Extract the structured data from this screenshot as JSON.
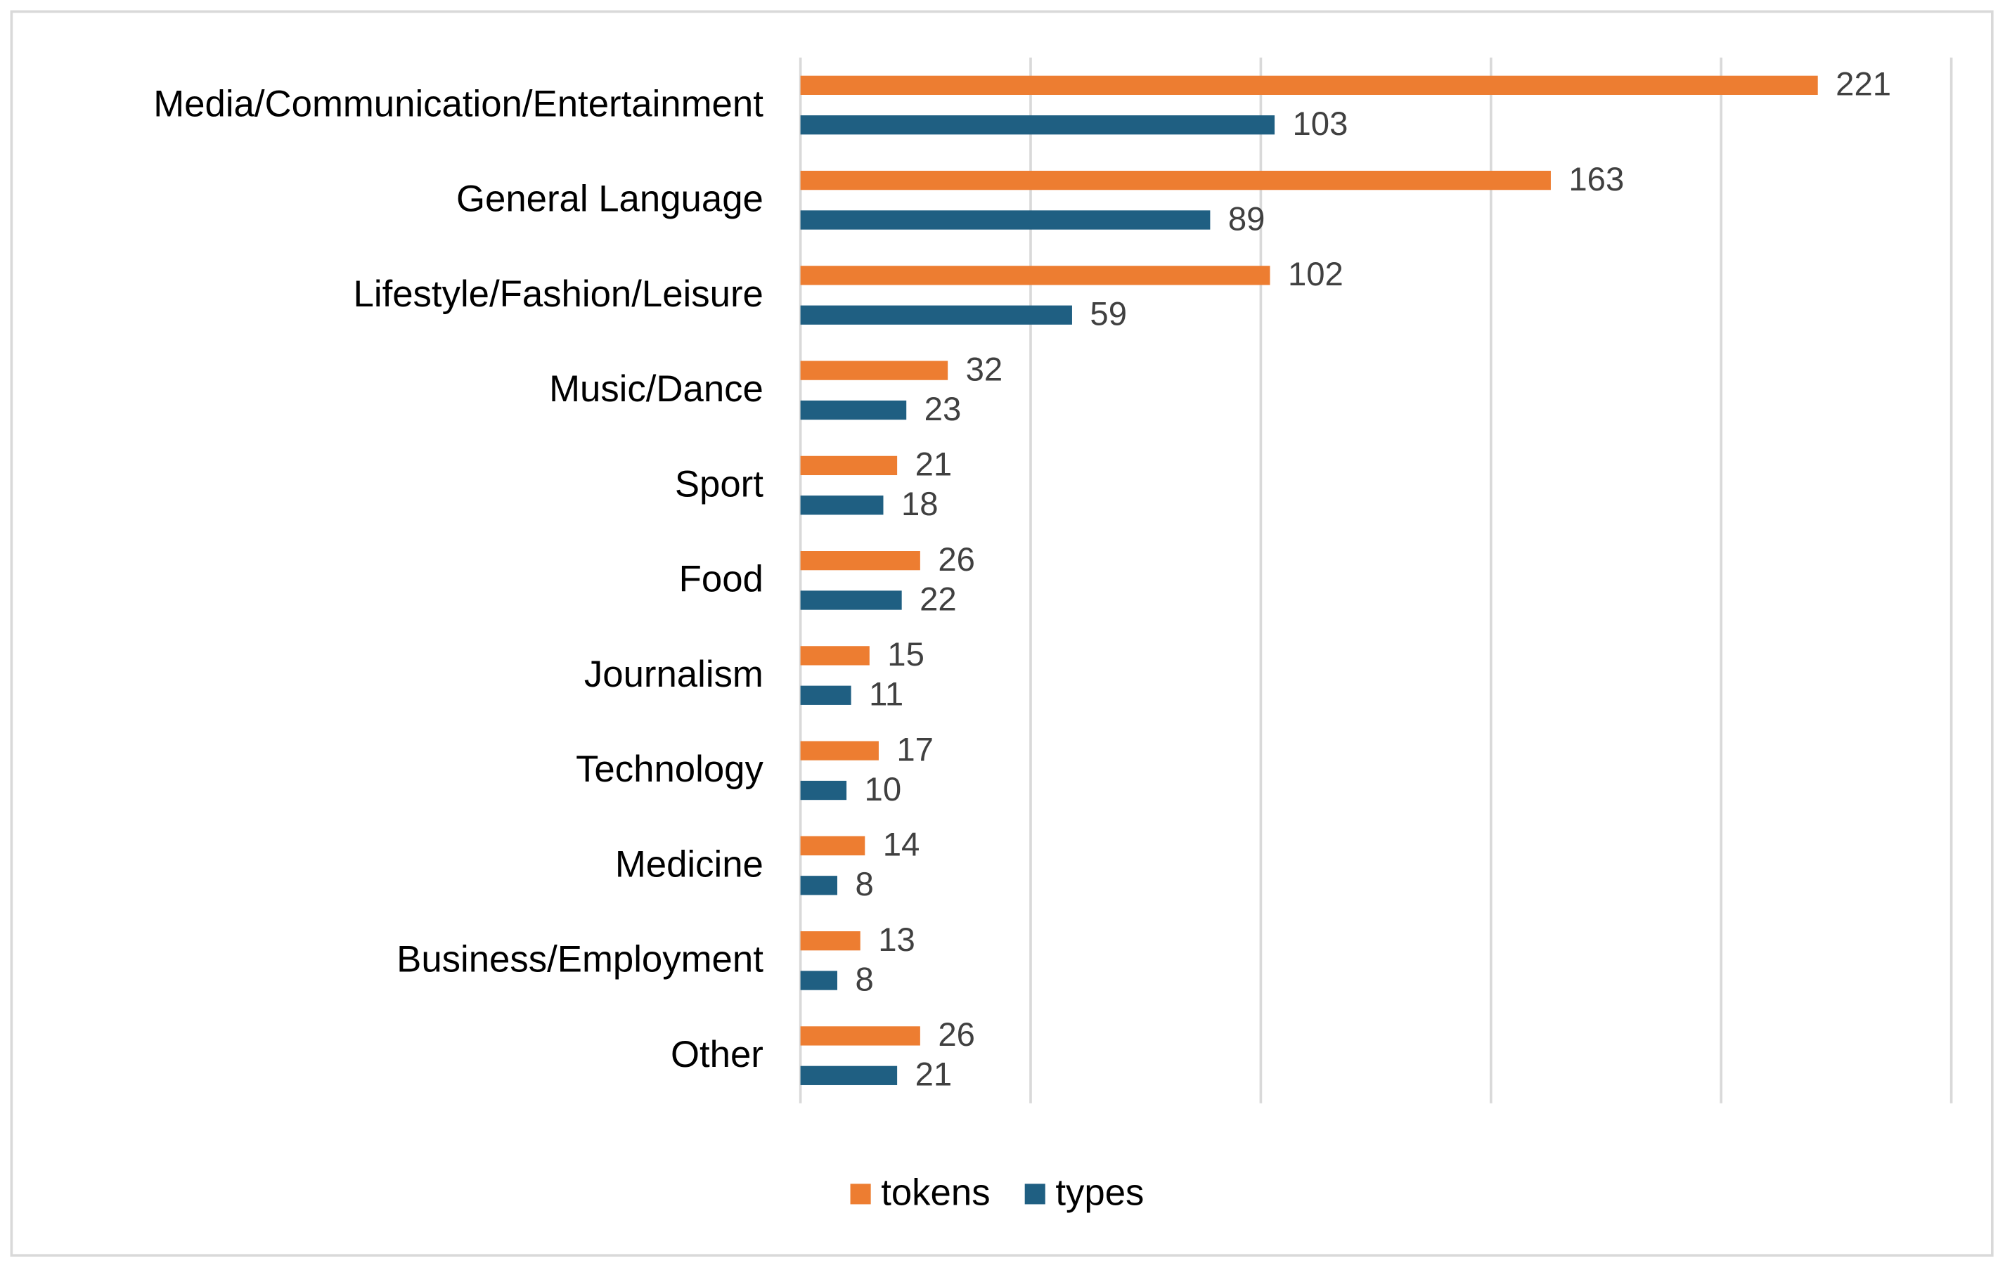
{
  "chart_data": {
    "type": "bar",
    "orientation": "horizontal",
    "categories": [
      "Media/Communication/Entertainment",
      "General Language",
      "Lifestyle/Fashion/Leisure",
      "Music/Dance",
      "Sport",
      "Food",
      "Journalism",
      "Technology",
      "Medicine",
      "Business/Employment",
      "Other"
    ],
    "series": [
      {
        "name": "tokens",
        "color": "#ed7d31",
        "values": [
          221,
          163,
          102,
          32,
          21,
          26,
          15,
          17,
          14,
          13,
          26
        ]
      },
      {
        "name": "types",
        "color": "#1f5f82",
        "values": [
          103,
          89,
          59,
          23,
          18,
          22,
          11,
          10,
          8,
          8,
          21
        ]
      }
    ],
    "xlim": [
      0,
      250
    ],
    "xticks": [
      0,
      50,
      100,
      150,
      200,
      250
    ],
    "grid": true,
    "legend": "bottom"
  }
}
